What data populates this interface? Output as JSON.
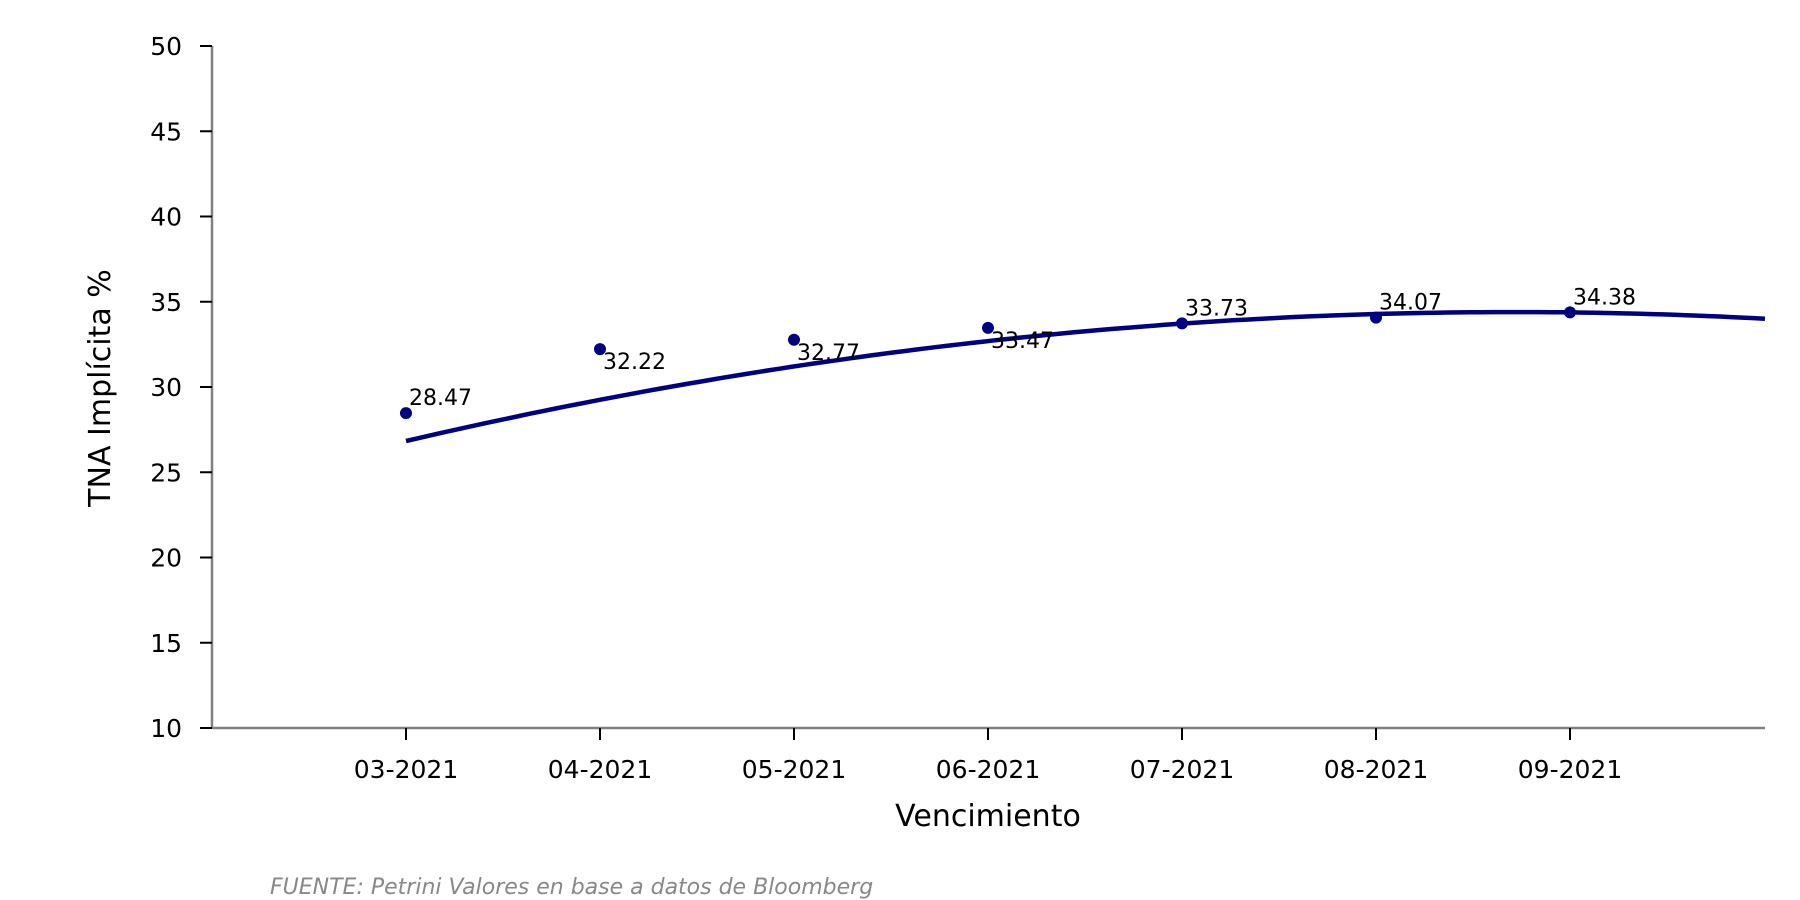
{
  "chart_data": {
    "type": "scatter",
    "title": "",
    "xlabel": "Vencimiento",
    "ylabel": "TNA Implícita %",
    "ylim": [
      10,
      50
    ],
    "yticks": [
      10,
      15,
      20,
      25,
      30,
      35,
      40,
      45,
      50
    ],
    "categories": [
      "03-2021",
      "04-2021",
      "05-2021",
      "06-2021",
      "07-2021",
      "08-2021",
      "09-2021"
    ],
    "series": [
      {
        "type": "scatter",
        "values": [
          28.47,
          32.22,
          32.77,
          33.47,
          33.73,
          34.07,
          34.38
        ],
        "labels": [
          "28.47",
          "32.22",
          "32.77",
          "33.47",
          "33.73",
          "34.07",
          "34.38"
        ],
        "color": "#000080"
      },
      {
        "type": "line",
        "note_fit": "quadratic trend",
        "x_start": "03-2021",
        "values_at_categories": [
          26.8,
          29.3,
          31.2,
          32.7,
          33.7,
          34.25,
          34.4
        ],
        "end_value": 34.0,
        "color": "#000080"
      }
    ],
    "grid": false,
    "legend": "none",
    "source": "FUENTE: Petrini Valores en base a datos de Bloomberg"
  }
}
